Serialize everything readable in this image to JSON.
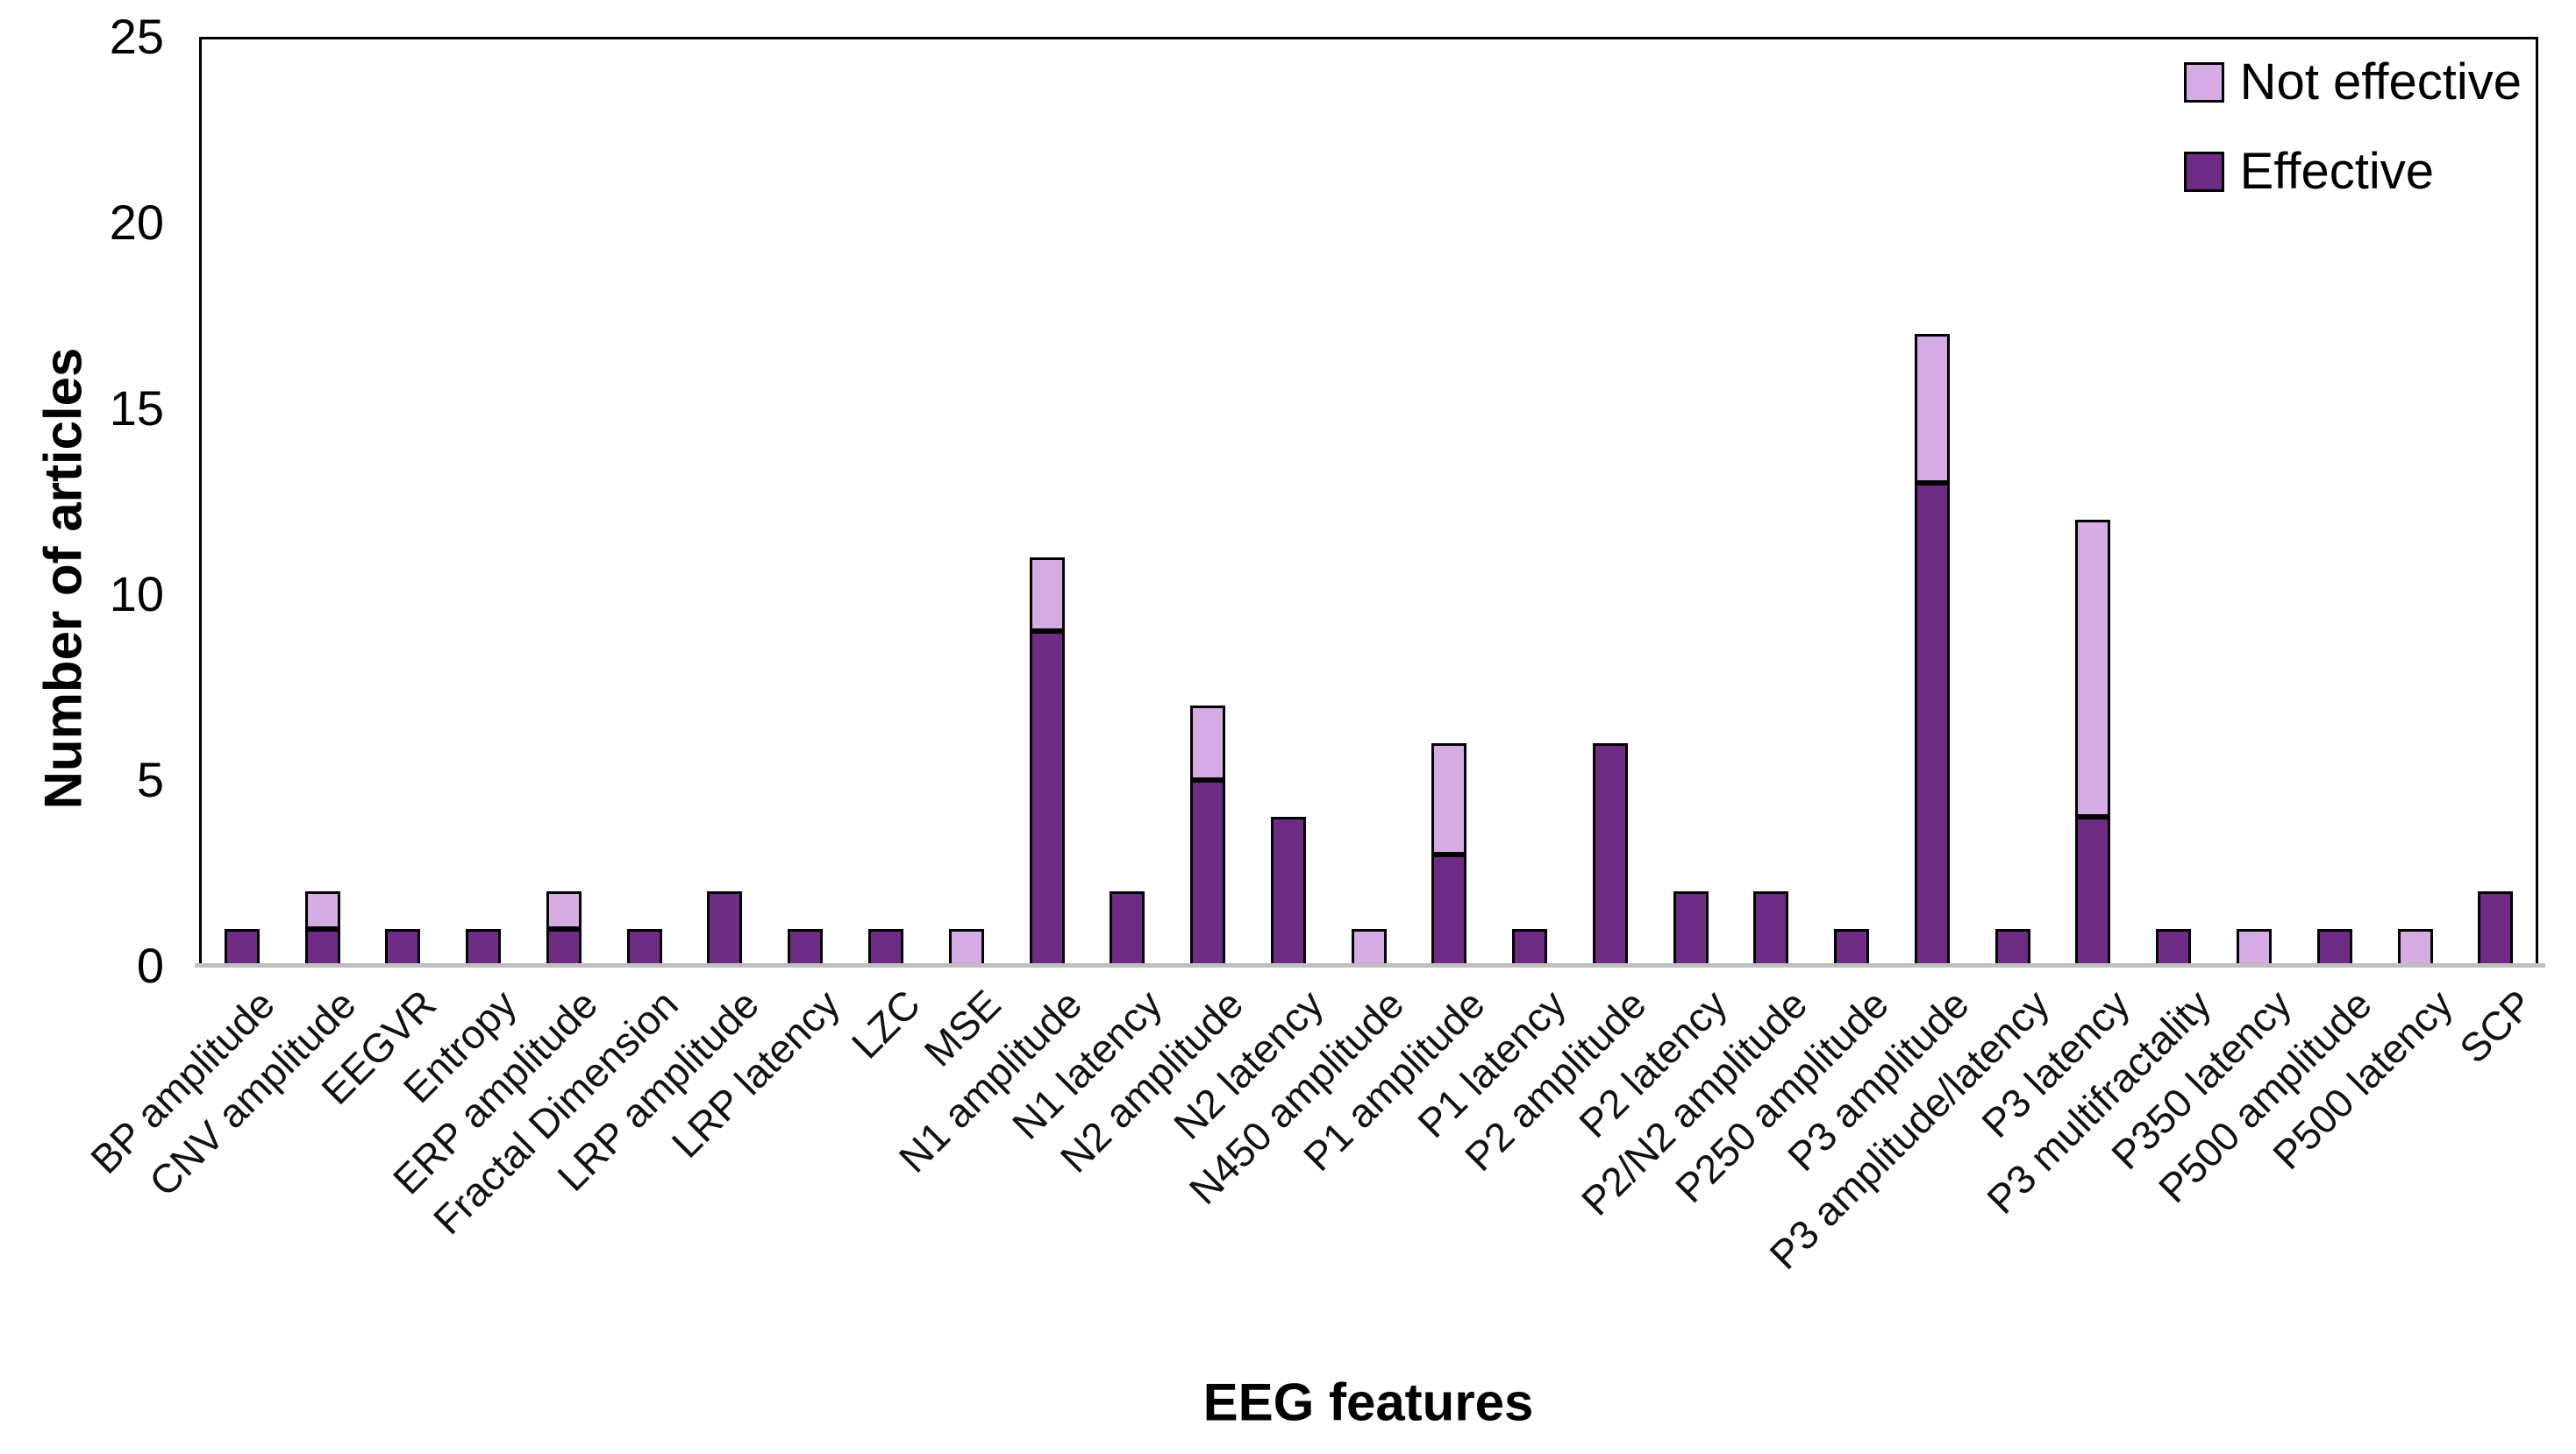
{
  "chart_data": {
    "type": "bar",
    "stacked": true,
    "title": "",
    "xlabel": "EEG features",
    "ylabel": "Number of articles",
    "ylim": [
      0,
      25
    ],
    "yticks": [
      0,
      5,
      10,
      15,
      20,
      25
    ],
    "grid": false,
    "legend_position": "top-right",
    "legend_entries": [
      "Not effective",
      "Effective"
    ],
    "categories": [
      "BP amplitude",
      "CNV amplitude",
      "EEGVR",
      "Entropy",
      "ERP amplitude",
      "Fractal Dimension",
      "LRP amplitude",
      "LRP latency",
      "LZC",
      "MSE",
      "N1 amplitude",
      "N1 latency",
      "N2 amplitude",
      "N2 latency",
      "N450 amplitude",
      "P1 amplitude",
      "P1 latency",
      "P2 amplitude",
      "P2 latency",
      "P2/N2 amplitude",
      "P250 amplitude",
      "P3 amplitude",
      "P3 amplitude/latency",
      "P3 latency",
      "P3 multifractality",
      "P350 latency",
      "P500 amplitude",
      "P500 latency",
      "SCP"
    ],
    "series": [
      {
        "name": "Effective",
        "color": "#6E2C85",
        "values": [
          1,
          1,
          1,
          1,
          1,
          1,
          2,
          1,
          1,
          0,
          9,
          2,
          5,
          4,
          0,
          3,
          1,
          6,
          2,
          2,
          1,
          13,
          1,
          4,
          1,
          0,
          1,
          0,
          2
        ]
      },
      {
        "name": "Not effective",
        "color": "#D5ABE3",
        "values": [
          0,
          1,
          0,
          0,
          1,
          0,
          0,
          0,
          0,
          1,
          2,
          0,
          2,
          0,
          1,
          3,
          0,
          0,
          0,
          0,
          0,
          4,
          0,
          8,
          0,
          1,
          0,
          1,
          0
        ]
      }
    ],
    "colors": {
      "axis_line": "#BFBFBF",
      "bar_border": "#000000",
      "text": "#000000"
    }
  }
}
